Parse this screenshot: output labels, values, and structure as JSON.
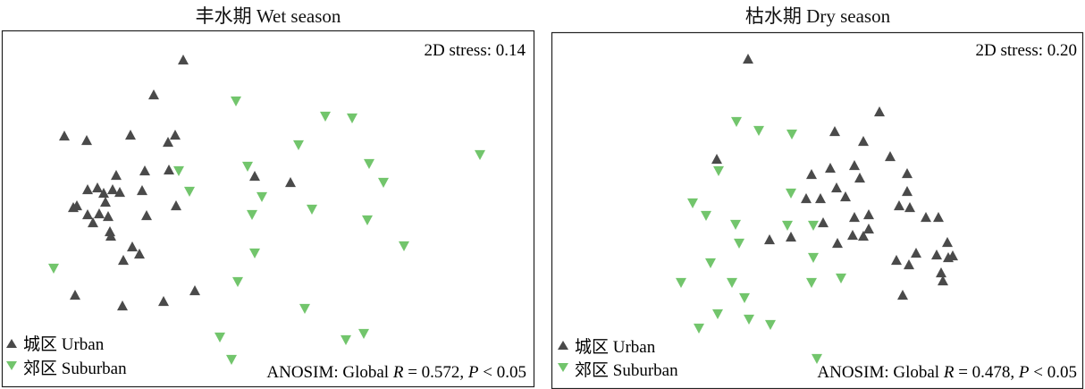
{
  "chart_data": [
    {
      "type": "scatter",
      "title": "丰水期 Wet season",
      "stress_label": "2D stress: 0.14",
      "anosim": {
        "prefix": "ANOSIM: Global ",
        "R_symbol": "R",
        "R_text": " = 0.572, ",
        "P_symbol": "P",
        "P_text": " < 0.05"
      },
      "legend_position": "bottom-left",
      "series": [
        {
          "name": "城区 Urban",
          "marker": "triangle-up",
          "color": "#4a4a4a",
          "points": [
            [
              205,
              67
            ],
            [
              172,
              106
            ],
            [
              72,
              152
            ],
            [
              97,
              157
            ],
            [
              146,
              151
            ],
            [
              196,
              151
            ],
            [
              188,
              159
            ],
            [
              130,
              196
            ],
            [
              162,
              191
            ],
            [
              189,
              190
            ],
            [
              109,
              210
            ],
            [
              98,
              212
            ],
            [
              126,
              212
            ],
            [
              116,
              216
            ],
            [
              134,
              215
            ],
            [
              159,
              213
            ],
            [
              86,
              230
            ],
            [
              82,
              232
            ],
            [
              98,
              240
            ],
            [
              118,
              226
            ],
            [
              121,
              242
            ],
            [
              111,
              239
            ],
            [
              164,
              241
            ],
            [
              104,
              249
            ],
            [
              123,
              259
            ],
            [
              197,
              230
            ],
            [
              124,
              264
            ],
            [
              148,
              276
            ],
            [
              156,
              284
            ],
            [
              138,
              291
            ],
            [
              218,
              325
            ],
            [
              183,
              337
            ],
            [
              84,
              330
            ],
            [
              137,
              342
            ],
            [
              285,
              197
            ],
            [
              325,
              204
            ]
          ]
        },
        {
          "name": "郊区 Suburban",
          "marker": "triangle-down",
          "color": "#72c56c",
          "points": [
            [
              264,
              113
            ],
            [
              364,
              130
            ],
            [
              394,
              132
            ],
            [
              334,
              162
            ],
            [
              537,
              173
            ],
            [
              200,
              191
            ],
            [
              277,
              186
            ],
            [
              413,
              183
            ],
            [
              429,
              204
            ],
            [
              212,
              214
            ],
            [
              293,
              220
            ],
            [
              282,
              240
            ],
            [
              349,
              234
            ],
            [
              411,
              246
            ],
            [
              452,
              275
            ],
            [
              285,
              283
            ],
            [
              60,
              300
            ],
            [
              266,
              315
            ],
            [
              341,
              345
            ],
            [
              246,
              377
            ],
            [
              259,
              402
            ],
            [
              387,
              380
            ],
            [
              407,
              373
            ]
          ]
        }
      ]
    },
    {
      "type": "scatter",
      "title": "枯水期 Dry season",
      "stress_label": "2D stress: 0.20",
      "anosim": {
        "prefix": "ANOSIM: Global ",
        "R_symbol": "R",
        "R_text": " = 0.478, ",
        "P_symbol": "P",
        "P_text": " < 0.05"
      },
      "legend_position": "bottom-left",
      "series": [
        {
          "name": "城区 Urban",
          "marker": "triangle-up",
          "color": "#4a4a4a",
          "points": [
            [
              837,
              66
            ],
            [
              984,
              125
            ],
            [
              934,
              147
            ],
            [
              966,
              158
            ],
            [
              802,
              178
            ],
            [
              996,
              175
            ],
            [
              929,
              188
            ],
            [
              956,
              185
            ],
            [
              908,
              195
            ],
            [
              936,
              210
            ],
            [
              946,
              220
            ],
            [
              962,
              199
            ],
            [
              1015,
              194
            ],
            [
              918,
              222
            ],
            [
              902,
              222
            ],
            [
              1015,
              214
            ],
            [
              1006,
              230
            ],
            [
              1018,
              232
            ],
            [
              972,
              240
            ],
            [
              921,
              249
            ],
            [
              956,
              243
            ],
            [
              1036,
              243
            ],
            [
              1050,
              243
            ],
            [
              972,
              256
            ],
            [
              954,
              263
            ],
            [
              966,
              264
            ],
            [
              937,
              272
            ],
            [
              885,
              265
            ],
            [
              861,
              268
            ],
            [
              1060,
              271
            ],
            [
              1025,
              283
            ],
            [
              1048,
              285
            ],
            [
              1066,
              286
            ],
            [
              1061,
              288
            ],
            [
              1003,
              291
            ],
            [
              1017,
              296
            ],
            [
              1053,
              305
            ],
            [
              1055,
              314
            ],
            [
              1010,
              330
            ]
          ]
        },
        {
          "name": "郊区 Suburban",
          "marker": "triangle-down",
          "color": "#72c56c",
          "points": [
            [
              824,
              136
            ],
            [
              849,
              146
            ],
            [
              886,
              150
            ],
            [
              804,
              191
            ],
            [
              885,
              216
            ],
            [
              775,
              227
            ],
            [
              790,
              241
            ],
            [
              823,
              251
            ],
            [
              881,
              252
            ],
            [
              910,
              252
            ],
            [
              827,
              272
            ],
            [
              910,
              288
            ],
            [
              795,
              294
            ],
            [
              941,
              311
            ],
            [
              762,
              316
            ],
            [
              819,
              316
            ],
            [
              908,
              316
            ],
            [
              833,
              333
            ],
            [
              803,
              351
            ],
            [
              838,
              357
            ],
            [
              862,
              363
            ],
            [
              782,
              367
            ],
            [
              914,
              401
            ]
          ]
        }
      ]
    }
  ]
}
